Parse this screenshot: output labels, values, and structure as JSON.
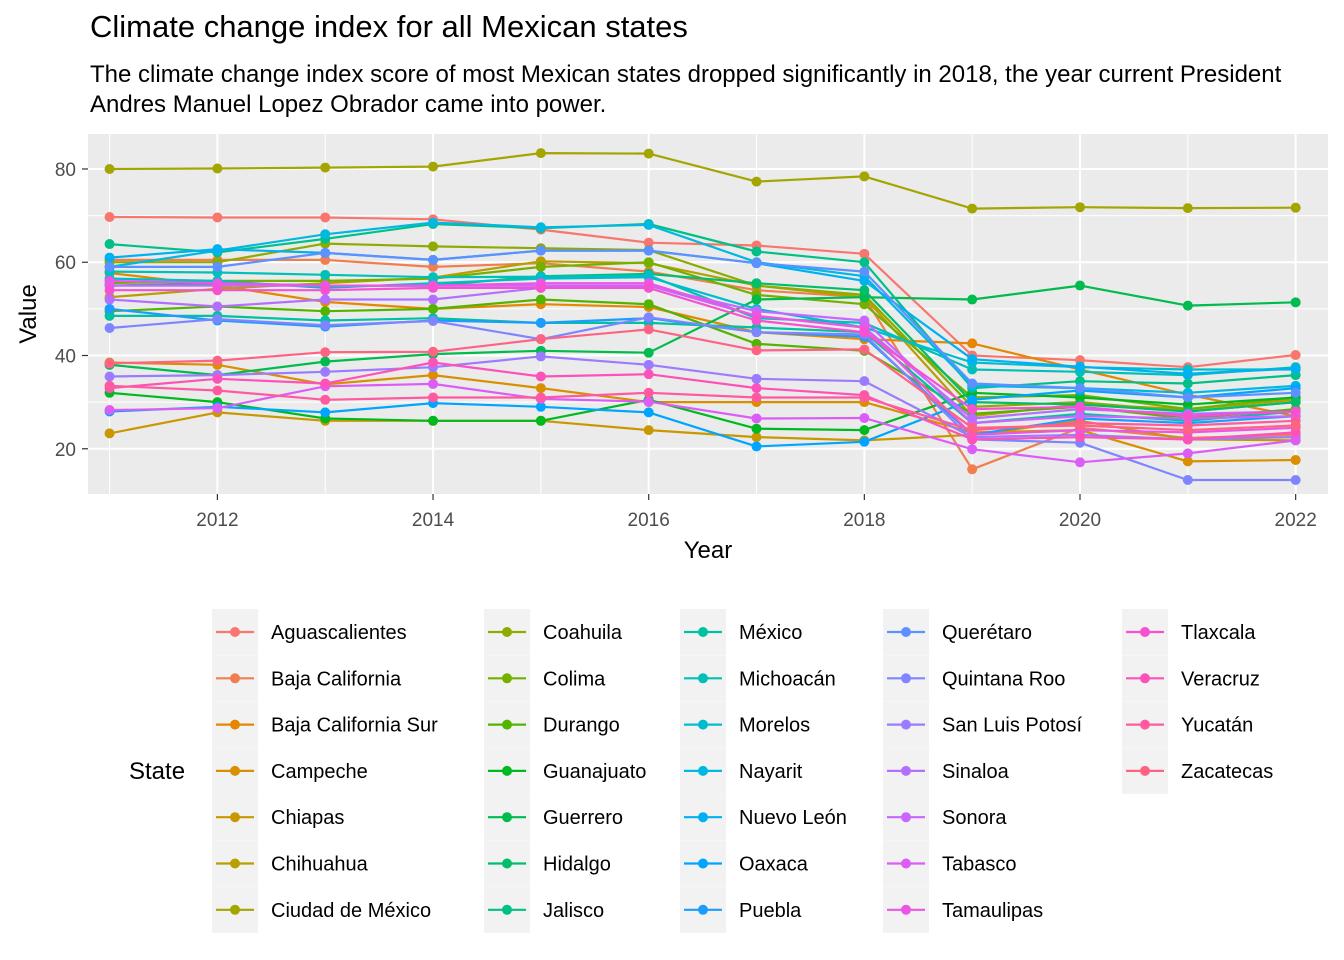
{
  "chart_data": {
    "type": "line",
    "title": "Climate change index for all Mexican states",
    "subtitle": "The climate change index score of most Mexican states dropped significantly in 2018, the year current President Andres Manuel Lopez Obrador came into power.",
    "xlabel": "Year",
    "ylabel": "Value",
    "xlim": [
      2010.8,
      2022.3
    ],
    "ylim": [
      10.3,
      87.5
    ],
    "x_ticks": [
      "2012",
      "2014",
      "2016",
      "2018",
      "2020",
      "2022"
    ],
    "y_ticks": [
      "20",
      "40",
      "60",
      "80"
    ],
    "grid": true,
    "legend_title": "State",
    "legend_placement": "bottom",
    "x": [
      2011,
      2012,
      2013,
      2014,
      2015,
      2016,
      2017,
      2018,
      2019,
      2020,
      2021,
      2022
    ],
    "series": [
      {
        "name": "Aguascalientes",
        "color": "#F8766D",
        "values": [
          69.7,
          69.6,
          69.6,
          69.2,
          67.0,
          64.2,
          63.6,
          61.8,
          40.0,
          39.0,
          37.5,
          40.1
        ]
      },
      {
        "name": "Baja California",
        "color": "#F07E4F",
        "values": [
          60.5,
          60.5,
          60.5,
          59.0,
          59.8,
          58.0,
          54.0,
          52.5,
          15.6,
          24.5,
          22.3,
          23.0
        ]
      },
      {
        "name": "Baja California Sur",
        "color": "#E58700",
        "values": [
          57.7,
          55.0,
          51.5,
          50.0,
          51.0,
          50.4,
          45.0,
          43.5,
          42.6,
          37.0,
          31.6,
          27.0
        ]
      },
      {
        "name": "Campeche",
        "color": "#D98F00",
        "values": [
          38.5,
          38.0,
          33.8,
          35.8,
          33.0,
          30.0,
          30.0,
          30.0,
          23.5,
          24.0,
          17.3,
          17.6
        ]
      },
      {
        "name": "Chiapas",
        "color": "#C99800",
        "values": [
          23.3,
          27.8,
          26.0,
          26.0,
          26.0,
          24.0,
          22.5,
          21.8,
          23.0,
          26.0,
          22.0,
          21.8
        ]
      },
      {
        "name": "Chihuahua",
        "color": "#B79F00",
        "values": [
          52.5,
          54.3,
          55.5,
          56.7,
          60.2,
          59.8,
          55.0,
          52.5,
          27.0,
          29.5,
          28.5,
          30.5
        ]
      },
      {
        "name": "Ciudad de México",
        "color": "#A3A500",
        "values": [
          80.0,
          80.1,
          80.3,
          80.5,
          83.4,
          83.3,
          77.3,
          78.4,
          71.5,
          71.8,
          71.6,
          71.7
        ]
      },
      {
        "name": "Coahuila",
        "color": "#8FAA00",
        "values": [
          60.0,
          60.0,
          64.0,
          63.4,
          63.0,
          62.6,
          55.0,
          53.0,
          29.0,
          30.0,
          28.0,
          30.0
        ]
      },
      {
        "name": "Colima",
        "color": "#75AF00",
        "values": [
          55.5,
          56.0,
          56.0,
          56.5,
          59.0,
          60.0,
          53.0,
          51.0,
          31.0,
          31.5,
          28.5,
          31.0
        ]
      },
      {
        "name": "Durango",
        "color": "#53B400",
        "values": [
          49.5,
          50.5,
          49.5,
          50.0,
          52.0,
          51.0,
          42.5,
          41.0,
          27.5,
          29.0,
          26.5,
          28.5
        ]
      },
      {
        "name": "Guanajuato",
        "color": "#00B81F",
        "values": [
          32.0,
          30.0,
          26.5,
          26.0,
          26.0,
          30.5,
          24.3,
          24.0,
          32.0,
          31.0,
          29.5,
          31.0
        ]
      },
      {
        "name": "Guerrero",
        "color": "#00BB4E",
        "values": [
          38.0,
          35.8,
          38.7,
          40.3,
          41.0,
          40.6,
          52.0,
          52.5,
          52.0,
          55.0,
          50.7,
          51.4
        ]
      },
      {
        "name": "Hidalgo",
        "color": "#00BE6C",
        "values": [
          55.0,
          55.5,
          55.0,
          55.0,
          57.0,
          57.5,
          55.5,
          54.0,
          30.0,
          29.5,
          28.0,
          30.0
        ]
      },
      {
        "name": "Jalisco",
        "color": "#00C087",
        "values": [
          63.9,
          62.1,
          65.0,
          68.2,
          67.3,
          68.2,
          62.3,
          60.0,
          33.0,
          34.5,
          34.0,
          35.8
        ]
      },
      {
        "name": "México",
        "color": "#00C1A0",
        "values": [
          48.5,
          48.5,
          47.5,
          48.0,
          47.0,
          47.0,
          46.0,
          45.0,
          25.5,
          27.5,
          26.0,
          28.0
        ]
      },
      {
        "name": "Michoacán",
        "color": "#00C0B8",
        "values": [
          58.0,
          57.8,
          57.3,
          56.8,
          56.9,
          57.2,
          48.0,
          47.0,
          37.0,
          36.5,
          35.8,
          37.5
        ]
      },
      {
        "name": "Morelos",
        "color": "#00BDCD",
        "values": [
          56.5,
          56.0,
          54.5,
          55.5,
          56.5,
          56.8,
          50.0,
          46.0,
          38.5,
          37.5,
          37.0,
          37.0
        ]
      },
      {
        "name": "Nayarit",
        "color": "#00B8E0",
        "values": [
          59.0,
          62.5,
          66.0,
          68.5,
          67.5,
          68.0,
          60.0,
          57.0,
          33.5,
          33.0,
          32.0,
          33.5
        ]
      },
      {
        "name": "Nuevo León",
        "color": "#00B0F0",
        "values": [
          61.0,
          62.8,
          62.0,
          60.5,
          62.5,
          62.5,
          59.8,
          56.0,
          39.2,
          37.6,
          36.1,
          37.2
        ]
      },
      {
        "name": "Oaxaca",
        "color": "#00A5FF",
        "values": [
          28.0,
          29.0,
          27.8,
          29.8,
          29.0,
          27.8,
          20.5,
          21.5,
          30.5,
          32.5,
          31.0,
          33.0
        ]
      },
      {
        "name": "Puebla",
        "color": "#1C9CFF",
        "values": [
          50.0,
          47.5,
          46.2,
          47.5,
          47.0,
          48.0,
          45.0,
          44.0,
          23.0,
          26.5,
          25.5,
          27.0
        ]
      },
      {
        "name": "Querétaro",
        "color": "#5C91FF",
        "values": [
          59.0,
          59.0,
          62.0,
          60.5,
          62.5,
          62.5,
          59.8,
          58.0,
          34.0,
          33.0,
          31.0,
          32.0
        ]
      },
      {
        "name": "Quintana Roo",
        "color": "#7F85FF",
        "values": [
          45.9,
          47.8,
          46.5,
          47.4,
          43.5,
          48.2,
          45.0,
          44.5,
          22.0,
          21.3,
          13.3,
          13.3
        ]
      },
      {
        "name": "San Luis Potosí",
        "color": "#9B7BFF",
        "values": [
          35.5,
          35.8,
          36.5,
          37.5,
          39.8,
          38.0,
          35.0,
          34.5,
          22.5,
          23.0,
          22.0,
          22.5
        ]
      },
      {
        "name": "Sinaloa",
        "color": "#B36FFF",
        "values": [
          52.0,
          50.5,
          52.0,
          52.0,
          54.5,
          55.0,
          48.5,
          46.0,
          26.5,
          28.5,
          27.5,
          28.0
        ]
      },
      {
        "name": "Sonora",
        "color": "#C966FF",
        "values": [
          55.0,
          55.0,
          55.0,
          55.0,
          55.0,
          55.0,
          49.5,
          47.5,
          25.5,
          27.0,
          26.5,
          27.0
        ]
      },
      {
        "name": "Tabasco",
        "color": "#DC5DF5",
        "values": [
          28.3,
          28.7,
          33.4,
          33.9,
          30.7,
          30.1,
          26.5,
          26.6,
          19.9,
          17.1,
          19.0,
          21.8
        ]
      },
      {
        "name": "Tamaulipas",
        "color": "#EB57E4",
        "values": [
          56.0,
          55.5,
          55.0,
          55.0,
          55.5,
          55.5,
          48.5,
          46.0,
          23.0,
          24.0,
          23.5,
          24.5
        ]
      },
      {
        "name": "Tlaxcala",
        "color": "#F651D0",
        "values": [
          54.0,
          54.0,
          54.0,
          54.5,
          54.5,
          54.5,
          47.5,
          45.0,
          28.5,
          29.0,
          27.0,
          28.0
        ]
      },
      {
        "name": "Veracruz",
        "color": "#FD52B9",
        "values": [
          33.0,
          35.0,
          34.0,
          38.5,
          35.5,
          36.0,
          33.0,
          31.5,
          22.0,
          22.5,
          22.0,
          23.5
        ]
      },
      {
        "name": "Yucatán",
        "color": "#FF59A0",
        "values": [
          33.5,
          32.5,
          30.5,
          31.0,
          31.0,
          32.0,
          31.0,
          31.0,
          24.0,
          25.5,
          25.0,
          26.0
        ]
      },
      {
        "name": "Zacatecas",
        "color": "#FF6384",
        "values": [
          38.3,
          38.9,
          40.7,
          40.8,
          43.5,
          45.6,
          41.1,
          41.3,
          24.5,
          25.0,
          24.0,
          25.0
        ]
      }
    ]
  }
}
